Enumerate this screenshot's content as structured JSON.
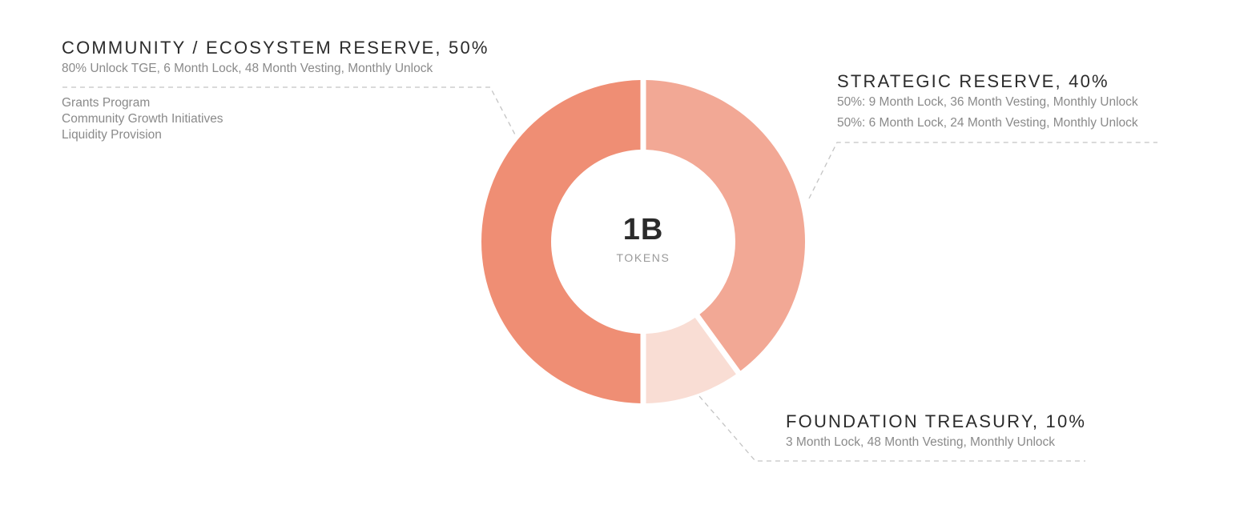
{
  "chart_data": {
    "type": "pie",
    "center_value": "1B",
    "center_label": "TOKENS",
    "slices": [
      {
        "title": "COMMUNITY / ECOSYSTEM RESERVE, 50%",
        "value": 50,
        "color": "#ef8e74",
        "details": [
          "80% Unlock TGE, 6 Month Lock, 48 Month Vesting, Monthly Unlock"
        ],
        "items": [
          "Grants Program",
          "Community Growth Initiatives",
          "Liquidity Provision"
        ]
      },
      {
        "title": "STRATEGIC RESERVE, 40%",
        "value": 40,
        "color": "#f2a895",
        "details": [
          "50%: 9 Month Lock, 36 Month Vesting, Monthly Unlock",
          "50%: 6 Month Lock, 24 Month Vesting, Monthly Unlock"
        ]
      },
      {
        "title": "FOUNDATION TREASURY, 10%",
        "value": 10,
        "color": "#f9ddd4",
        "details": [
          "3 Month Lock, 48 Month Vesting, Monthly Unlock"
        ]
      }
    ]
  }
}
